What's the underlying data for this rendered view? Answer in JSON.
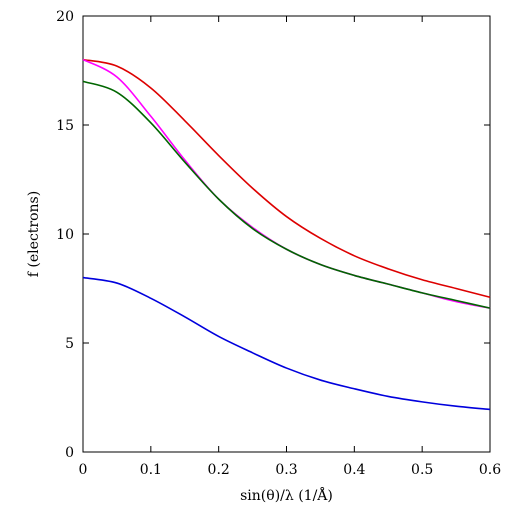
{
  "chart_data": {
    "type": "line",
    "xlabel": "sin(θ)/λ (1/Å)",
    "ylabel": "f (electrons)",
    "xlim": [
      0,
      0.6
    ],
    "ylim": [
      0,
      20
    ],
    "xticks": [
      0,
      0.1,
      0.2,
      0.3,
      0.4,
      0.5,
      0.6
    ],
    "yticks": [
      0,
      5,
      10,
      15,
      20
    ],
    "xtick_labels": [
      "0",
      "0.1",
      "0.2",
      "0.3",
      "0.4",
      "0.5",
      "0.6"
    ],
    "ytick_labels": [
      "0",
      "5",
      "10",
      "15",
      "20"
    ],
    "grid": false,
    "series": [
      {
        "color": "#dd0000",
        "x": [
          0,
          0.05,
          0.1,
          0.15,
          0.2,
          0.25,
          0.3,
          0.35,
          0.4,
          0.45,
          0.5,
          0.55,
          0.6
        ],
        "y": [
          18.0,
          17.7,
          16.7,
          15.2,
          13.6,
          12.1,
          10.8,
          9.8,
          9.0,
          8.4,
          7.9,
          7.5,
          7.1
        ]
      },
      {
        "color": "#ff00ff",
        "x": [
          0,
          0.05,
          0.1,
          0.15,
          0.2,
          0.25,
          0.3,
          0.35,
          0.4,
          0.45,
          0.5,
          0.55,
          0.6
        ],
        "y": [
          18.0,
          17.2,
          15.4,
          13.4,
          11.6,
          10.3,
          9.3,
          8.6,
          8.1,
          7.7,
          7.3,
          6.9,
          6.6
        ]
      },
      {
        "color": "#006600",
        "x": [
          0,
          0.05,
          0.1,
          0.15,
          0.2,
          0.25,
          0.3,
          0.35,
          0.4,
          0.45,
          0.5,
          0.55,
          0.6
        ],
        "y": [
          17.0,
          16.5,
          15.1,
          13.3,
          11.6,
          10.25,
          9.3,
          8.6,
          8.1,
          7.7,
          7.3,
          6.95,
          6.6
        ]
      },
      {
        "color": "#0000dd",
        "x": [
          0,
          0.05,
          0.1,
          0.15,
          0.2,
          0.25,
          0.3,
          0.35,
          0.4,
          0.45,
          0.5,
          0.55,
          0.6
        ],
        "y": [
          8.0,
          7.75,
          7.05,
          6.2,
          5.3,
          4.55,
          3.85,
          3.3,
          2.9,
          2.55,
          2.3,
          2.1,
          1.95
        ]
      }
    ]
  }
}
